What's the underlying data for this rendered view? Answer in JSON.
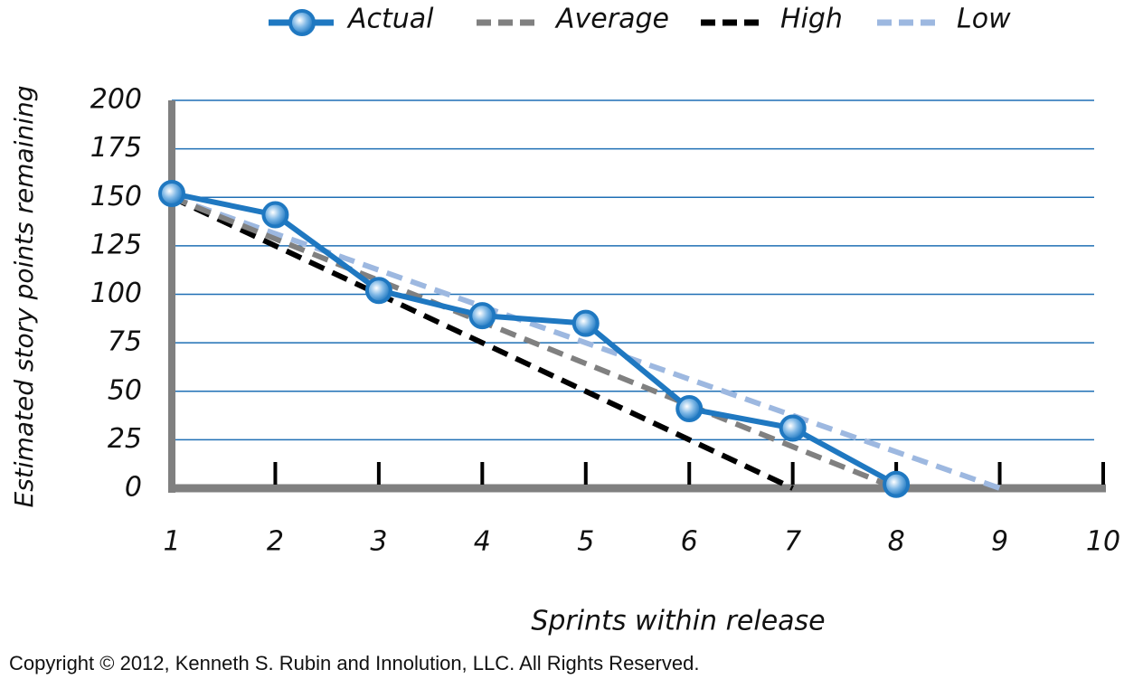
{
  "chart_data": {
    "type": "line",
    "x_label": "Sprints within release",
    "y_label": "Estimated story points remaining",
    "footnote": "Copyright © 2012, Kenneth S. Rubin and Innolution, LLC. All Rights Reserved.",
    "x": [
      1,
      2,
      3,
      4,
      5,
      6,
      7,
      8,
      9
    ],
    "series": [
      {
        "name": "Actual",
        "color": "#1f78c1",
        "dashed": false,
        "markers": true,
        "values": [
          152,
          141,
          102,
          89,
          85,
          41,
          31,
          2,
          null
        ]
      },
      {
        "name": "Average",
        "color": "#808080",
        "dashed": true,
        "markers": false,
        "values": [
          150,
          null,
          null,
          null,
          null,
          null,
          null,
          0,
          null
        ]
      },
      {
        "name": "High",
        "color": "#000000",
        "dashed": true,
        "markers": false,
        "values": [
          150,
          null,
          null,
          null,
          null,
          null,
          0,
          null,
          null
        ]
      },
      {
        "name": "Low",
        "color": "#9db8e0",
        "dashed": true,
        "markers": false,
        "values": [
          150,
          null,
          null,
          null,
          null,
          null,
          null,
          null,
          0
        ]
      }
    ],
    "xlim": [
      1,
      10
    ],
    "ylim": [
      0,
      200
    ],
    "xticks": [
      1,
      2,
      3,
      4,
      5,
      6,
      7,
      8,
      9,
      10
    ],
    "yticks": [
      0,
      25,
      50,
      75,
      100,
      125,
      150,
      175,
      200
    ],
    "grid": true,
    "grid_color": "#1f6fb5",
    "axis_color": "#808080",
    "legend": "top"
  }
}
